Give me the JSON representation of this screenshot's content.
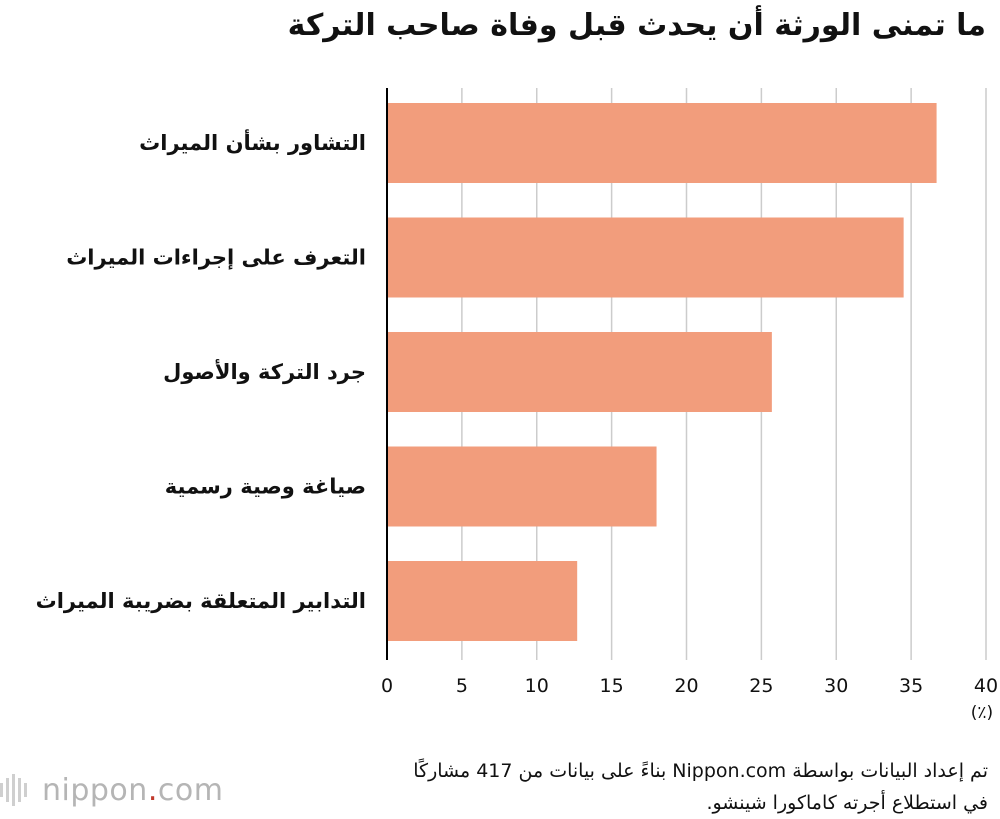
{
  "title": "ما تمنى الورثة أن يحدث قبل وفاة صاحب التركة",
  "unit": "(٪)",
  "note_lines": [
    "تم إعداد البيانات بواسطة Nippon.com بناءً على بيانات من 417 مشاركًا",
    "في استطلاع أجرته كاماكورا شينشو."
  ],
  "logo": {
    "text": "nippon",
    "dot": ".",
    "suffix": "com"
  },
  "colors": {
    "bar": "#F29D7C",
    "grid": "#cccccc",
    "axis": "#000000",
    "logo_dot": "#c0392b"
  },
  "chart_data": {
    "type": "bar",
    "orientation": "horizontal",
    "title": "ما تمنى الورثة أن يحدث قبل وفاة صاحب التركة",
    "categories": [
      "التشاور بشأن الميراث",
      "التعرف على إجراءات الميراث",
      "جرد التركة والأصول",
      "صياغة وصية رسمية",
      "التدابير المتعلقة بضريبة الميراث"
    ],
    "values": [
      36.7,
      34.5,
      25.7,
      18.0,
      12.7
    ],
    "xlim": [
      0,
      40
    ],
    "xticks": [
      0,
      5,
      10,
      15,
      20,
      25,
      30,
      35,
      40
    ],
    "xlabel": "(٪)",
    "ylabel": "",
    "grid": true
  }
}
